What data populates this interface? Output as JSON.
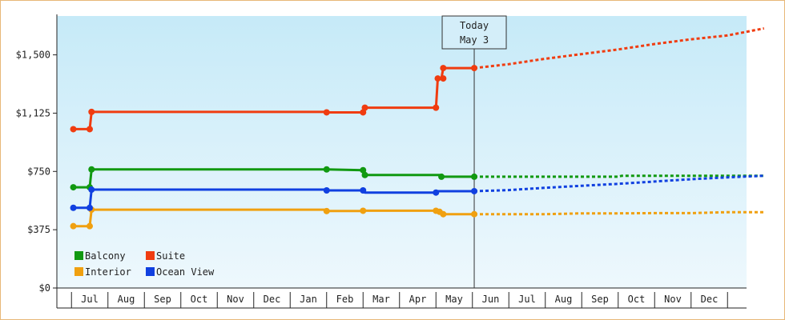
{
  "chart_data": {
    "type": "line",
    "title": "",
    "xlabel": "",
    "ylabel": "",
    "ylim": [
      0,
      1750
    ],
    "yticks": [
      {
        "value": 0,
        "label": "$0"
      },
      {
        "value": 375,
        "label": "$375"
      },
      {
        "value": 750,
        "label": "$750"
      },
      {
        "value": 1125,
        "label": "$1,125"
      },
      {
        "value": 1500,
        "label": "$1,500"
      }
    ],
    "x_months": [
      "Jul",
      "Aug",
      "Sep",
      "Oct",
      "Nov",
      "Dec",
      "Jan",
      "Feb",
      "Mar",
      "Apr",
      "May",
      "Jun",
      "Jul",
      "Aug",
      "Sep",
      "Oct",
      "Nov",
      "Dec"
    ],
    "today": {
      "label": "Today",
      "date": "May 3",
      "x": 10.55
    },
    "grid": false,
    "legend_position": "bottom-left",
    "series": [
      {
        "name": "Balcony",
        "color": "#119911",
        "points": [
          [
            -0.45,
            648
          ],
          [
            0,
            648
          ],
          [
            0.05,
            763
          ],
          [
            6.5,
            763
          ],
          [
            7.5,
            758
          ],
          [
            7.55,
            727
          ],
          [
            9.6,
            727
          ],
          [
            9.65,
            716
          ],
          [
            10.55,
            716
          ]
        ],
        "markers": [
          [
            -0.45,
            648
          ],
          [
            0,
            648
          ],
          [
            0.05,
            763
          ],
          [
            6.5,
            763
          ],
          [
            7.5,
            758
          ],
          [
            7.55,
            727
          ],
          [
            9.65,
            716
          ],
          [
            10.55,
            716
          ]
        ],
        "projection": [
          [
            10.55,
            716
          ],
          [
            11.5,
            716
          ],
          [
            12.5,
            716
          ],
          [
            13.5,
            716
          ],
          [
            14.5,
            716
          ],
          [
            14.6,
            722
          ],
          [
            15.5,
            722
          ],
          [
            16.5,
            722
          ],
          [
            17.5,
            722
          ],
          [
            18.5,
            722
          ]
        ]
      },
      {
        "name": "Interior",
        "color": "#f0a010",
        "points": [
          [
            -0.45,
            398
          ],
          [
            0,
            398
          ],
          [
            0.05,
            504
          ],
          [
            6.5,
            504
          ],
          [
            6.55,
            495
          ],
          [
            7.5,
            495
          ],
          [
            7.55,
            497
          ],
          [
            9.5,
            497
          ],
          [
            9.55,
            490
          ],
          [
            9.65,
            490
          ],
          [
            9.7,
            475
          ],
          [
            10.55,
            475
          ]
        ],
        "markers": [
          [
            -0.45,
            398
          ],
          [
            0,
            398
          ],
          [
            0.05,
            504
          ],
          [
            6.5,
            495
          ],
          [
            7.5,
            497
          ],
          [
            9.5,
            497
          ],
          [
            9.6,
            490
          ],
          [
            9.7,
            475
          ],
          [
            10.55,
            475
          ]
        ],
        "projection": [
          [
            10.55,
            475
          ],
          [
            11.5,
            475
          ],
          [
            12.5,
            475
          ],
          [
            13.5,
            480
          ],
          [
            14.5,
            480
          ],
          [
            15.5,
            482
          ],
          [
            16.5,
            482
          ],
          [
            17.5,
            488
          ],
          [
            18.5,
            488
          ]
        ]
      },
      {
        "name": "Ocean View",
        "color": "#1040e0",
        "points": [
          [
            -0.45,
            516
          ],
          [
            0,
            516
          ],
          [
            0.05,
            633
          ],
          [
            6.5,
            633
          ],
          [
            6.55,
            628
          ],
          [
            7.5,
            628
          ],
          [
            7.55,
            614
          ],
          [
            9.5,
            614
          ],
          [
            9.55,
            623
          ],
          [
            10.55,
            623
          ]
        ],
        "markers": [
          [
            -0.45,
            516
          ],
          [
            0,
            516
          ],
          [
            0.05,
            633
          ],
          [
            6.5,
            628
          ],
          [
            7.5,
            628
          ],
          [
            9.5,
            614
          ],
          [
            10.55,
            623
          ]
        ],
        "projection": [
          [
            10.55,
            623
          ],
          [
            11.5,
            630
          ],
          [
            12.5,
            645
          ],
          [
            13.5,
            658
          ],
          [
            14.5,
            670
          ],
          [
            15.5,
            685
          ],
          [
            16.5,
            700
          ],
          [
            17.5,
            712
          ],
          [
            18.5,
            722
          ]
        ]
      },
      {
        "name": "Suite",
        "color": "#f03c10",
        "points": [
          [
            -0.45,
            1022
          ],
          [
            0,
            1022
          ],
          [
            0.05,
            1133
          ],
          [
            6.5,
            1133
          ],
          [
            6.55,
            1130
          ],
          [
            7.5,
            1130
          ],
          [
            7.55,
            1160
          ],
          [
            9.5,
            1160
          ],
          [
            9.55,
            1348
          ],
          [
            9.65,
            1348
          ],
          [
            9.7,
            1415
          ],
          [
            10.55,
            1415
          ]
        ],
        "markers": [
          [
            -0.45,
            1022
          ],
          [
            0,
            1022
          ],
          [
            0.05,
            1133
          ],
          [
            6.5,
            1130
          ],
          [
            7.5,
            1130
          ],
          [
            7.55,
            1160
          ],
          [
            9.5,
            1160
          ],
          [
            9.55,
            1348
          ],
          [
            9.7,
            1348
          ],
          [
            9.7,
            1415
          ],
          [
            10.55,
            1415
          ]
        ],
        "projection": [
          [
            10.55,
            1415
          ],
          [
            11.5,
            1440
          ],
          [
            12.5,
            1475
          ],
          [
            13.5,
            1505
          ],
          [
            14.5,
            1535
          ],
          [
            15.5,
            1570
          ],
          [
            16.5,
            1600
          ],
          [
            17.5,
            1625
          ],
          [
            18.5,
            1670
          ]
        ]
      }
    ],
    "legend": [
      {
        "name": "Balcony",
        "color": "#119911"
      },
      {
        "name": "Suite",
        "color": "#f03c10"
      },
      {
        "name": "Interior",
        "color": "#f0a010"
      },
      {
        "name": "Ocean View",
        "color": "#1040e0"
      }
    ]
  }
}
